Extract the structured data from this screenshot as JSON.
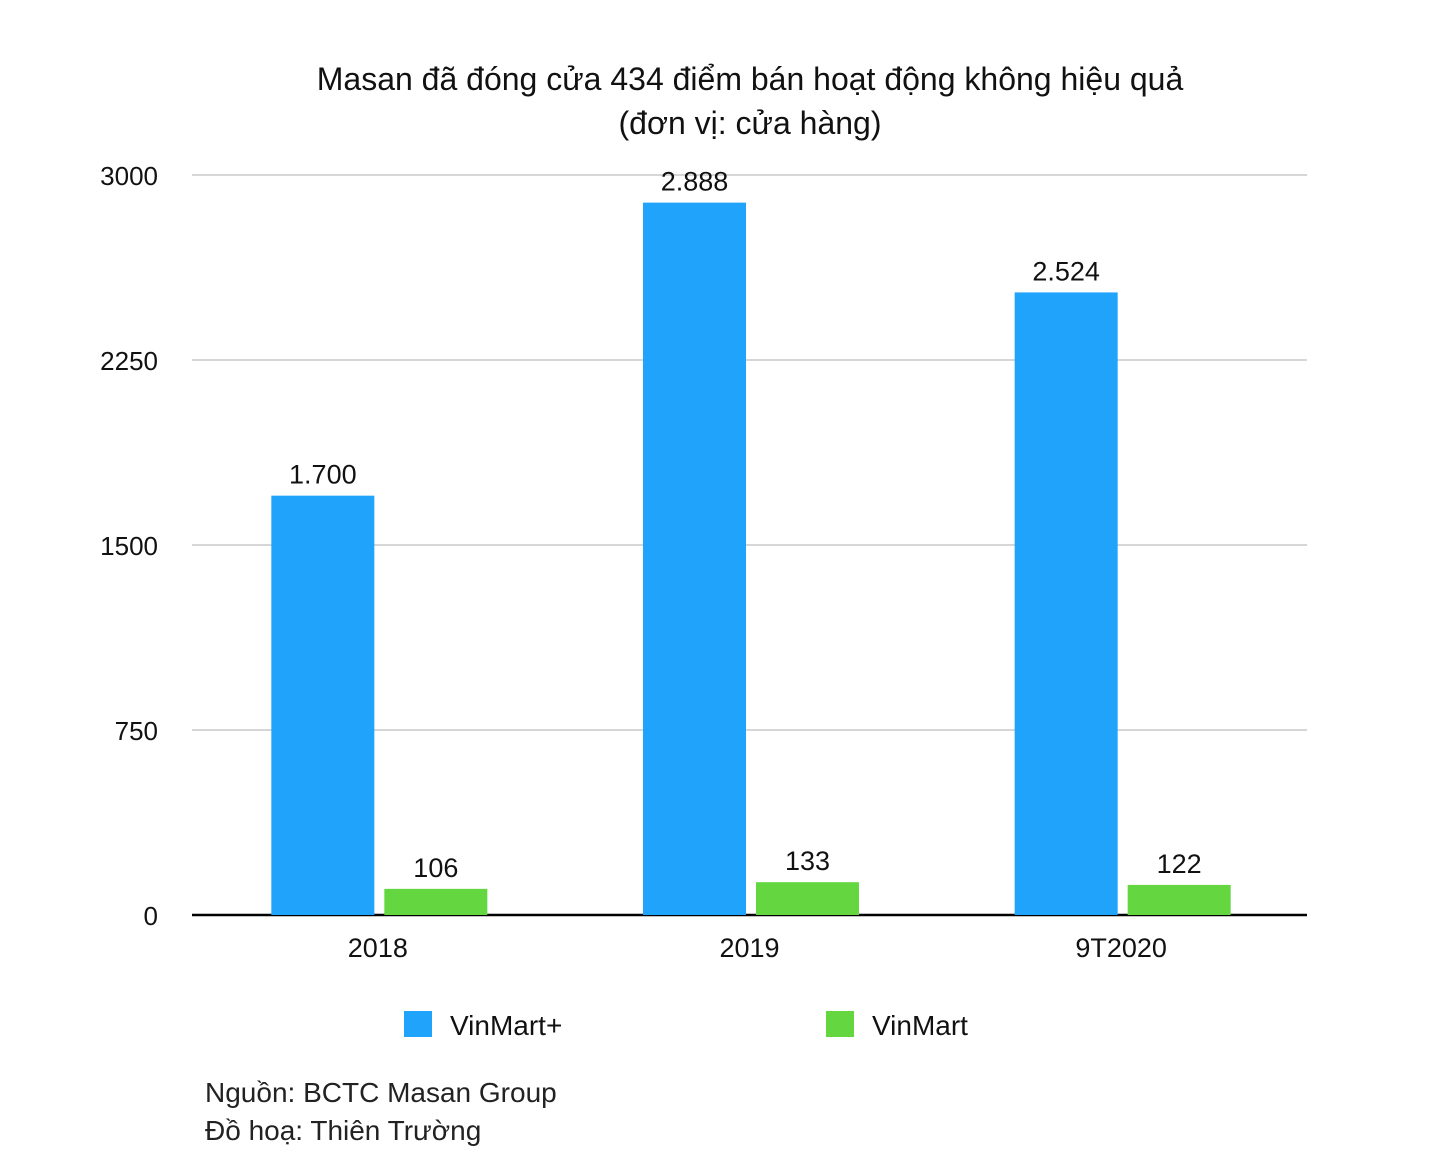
{
  "chart_data": {
    "type": "bar",
    "title_lines": [
      "Masan đã đóng cửa 434 điểm bán hoạt động không hiệu quả",
      "(đơn vị: cửa hàng)"
    ],
    "categories": [
      "2018",
      "2019",
      "9T2020"
    ],
    "series": [
      {
        "name": "VinMart+",
        "color": "#1FA3FB",
        "values": [
          1700,
          2888,
          2524
        ],
        "value_labels": [
          "1.700",
          "2.888",
          "2.524"
        ]
      },
      {
        "name": "VinMart",
        "color": "#63D640",
        "values": [
          106,
          133,
          122
        ],
        "value_labels": [
          "106",
          "133",
          "122"
        ]
      }
    ],
    "ylim": [
      0,
      3000
    ],
    "yticks": [
      0,
      750,
      1500,
      2250,
      3000
    ],
    "ytick_labels": [
      "0",
      "750",
      "1500",
      "2250",
      "3000"
    ],
    "grid": true,
    "legend_position": "bottom"
  },
  "notes": {
    "source": "Nguồn: BCTC Masan Group",
    "credit": "Đồ hoạ: Thiên Trường"
  }
}
